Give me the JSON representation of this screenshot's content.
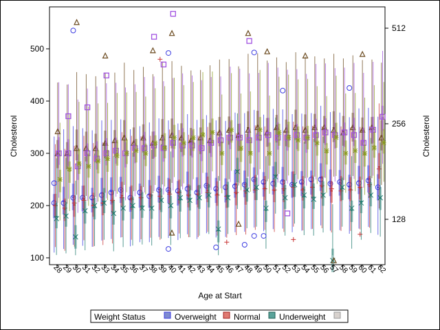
{
  "chart_data": {
    "type": "box",
    "title": "",
    "xlabel": "Age at Start",
    "ylabel": "Cholesterol",
    "y2label": "Cholesterol",
    "ylim": [
      80,
      580
    ],
    "yticks": [
      100,
      200,
      300,
      400,
      500
    ],
    "y2scale": "log2",
    "y2ticks": [
      128,
      256,
      512
    ],
    "categories": [
      "28",
      "29",
      "30",
      "31",
      "32",
      "33",
      "34",
      "35",
      "36",
      "37",
      "38",
      "39",
      "40",
      "41",
      "42",
      "43",
      "44",
      "45",
      "46",
      "47",
      "48",
      "49",
      "50",
      "51",
      "52",
      "53",
      "54",
      "55",
      "56",
      "57",
      "58",
      "59",
      "60",
      "61",
      "62"
    ],
    "legend": {
      "title": "Weight Status",
      "position": "bottom",
      "entries": [
        "Overweight",
        "Normal",
        "Underweight",
        ""
      ]
    },
    "series": [
      {
        "name": "Overweight",
        "color": "#3a3ae0",
        "marker": "circle",
        "iqr": 50,
        "whisker": 110,
        "mean": [
          205,
          205,
          215,
          215,
          215,
          220,
          225,
          230,
          215,
          225,
          218,
          230,
          230,
          228,
          232,
          225,
          238,
          232,
          235,
          237,
          240,
          250,
          245,
          242,
          245,
          240,
          245,
          250,
          250,
          242,
          245,
          240,
          243,
          248,
          235
        ]
      },
      {
        "name": "Normal",
        "color": "#c83232",
        "marker": "plus",
        "iqr": 45,
        "whisker": 95,
        "mean": [
          200,
          195,
          205,
          210,
          200,
          205,
          210,
          215,
          212,
          215,
          220,
          218,
          222,
          225,
          220,
          222,
          225,
          220,
          218,
          225,
          228,
          230,
          232,
          230,
          232,
          235,
          230,
          235,
          238,
          232,
          228,
          230,
          235,
          240,
          270
        ]
      },
      {
        "name": "Underweight",
        "color": "#1f7a6e",
        "marker": "x",
        "iqr": 45,
        "whisker": 85,
        "mean": [
          175,
          180,
          140,
          190,
          200,
          205,
          185,
          195,
          200,
          195,
          195,
          210,
          200,
          215,
          210,
          215,
          220,
          155,
          215,
          265,
          230,
          235,
          195,
          255,
          215,
          240,
          220,
          212,
          220,
          95,
          235,
          195,
          205,
          220,
          215
        ]
      },
      {
        "name": "",
        "color": "#6b4a1f",
        "marker": "triangle",
        "iqr": 55,
        "whisker": 110,
        "mean": [
          300,
          300,
          310,
          310,
          310,
          320,
          325,
          330,
          320,
          330,
          320,
          330,
          335,
          330,
          325,
          330,
          325,
          340,
          345,
          335,
          345,
          350,
          340,
          350,
          345,
          350,
          345,
          350,
          350,
          345,
          340,
          350,
          345,
          350,
          330
        ]
      },
      {
        "name": "",
        "color": "#a050e0",
        "marker": "square",
        "iqr": 50,
        "whisker": 105,
        "mean": [
          300,
          300,
          275,
          300,
          290,
          300,
          305,
          300,
          310,
          310,
          315,
          310,
          320,
          315,
          315,
          310,
          320,
          325,
          330,
          330,
          325,
          330,
          335,
          330,
          330,
          335,
          330,
          335,
          340,
          335,
          340,
          335,
          320,
          345,
          370
        ]
      },
      {
        "name": "",
        "color": "#8a9a20",
        "marker": "asterisk",
        "iqr": 45,
        "whisker": 90,
        "mean": [
          250,
          270,
          280,
          275,
          285,
          290,
          295,
          300,
          305,
          300,
          320,
          310,
          330,
          320,
          330,
          335,
          340,
          300,
          345,
          310,
          300,
          345,
          300,
          340,
          330,
          325,
          330,
          320,
          305,
          330,
          300,
          305,
          300,
          310,
          320
        ]
      }
    ],
    "outliers": [
      {
        "series": 0,
        "x": "28",
        "y": 243
      },
      {
        "series": 0,
        "x": "30",
        "y": 535
      },
      {
        "series": 0,
        "x": "40",
        "y": 117
      },
      {
        "series": 0,
        "x": "40",
        "y": 492
      },
      {
        "series": 0,
        "x": "45",
        "y": 120
      },
      {
        "series": 0,
        "x": "48",
        "y": 125
      },
      {
        "series": 0,
        "x": "49",
        "y": 493
      },
      {
        "series": 0,
        "x": "49",
        "y": 142
      },
      {
        "series": 0,
        "x": "50",
        "y": 142
      },
      {
        "series": 0,
        "x": "59",
        "y": 425
      },
      {
        "series": 0,
        "x": "52",
        "y": 420
      },
      {
        "series": 1,
        "x": "39",
        "y": 480
      },
      {
        "series": 1,
        "x": "46",
        "y": 130
      },
      {
        "series": 1,
        "x": "53",
        "y": 135
      },
      {
        "series": 1,
        "x": "60",
        "y": 145
      },
      {
        "series": 3,
        "x": "28",
        "y": 342
      },
      {
        "series": 3,
        "x": "30",
        "y": 551
      },
      {
        "series": 3,
        "x": "33",
        "y": 487
      },
      {
        "series": 3,
        "x": "38",
        "y": 497
      },
      {
        "series": 3,
        "x": "40",
        "y": 530
      },
      {
        "series": 3,
        "x": "48",
        "y": 530
      },
      {
        "series": 3,
        "x": "50",
        "y": 495
      },
      {
        "series": 3,
        "x": "54",
        "y": 487
      },
      {
        "series": 3,
        "x": "60",
        "y": 490
      },
      {
        "series": 3,
        "x": "40",
        "y": 148
      },
      {
        "series": 3,
        "x": "47",
        "y": 165
      },
      {
        "series": 3,
        "x": "57",
        "y": 95
      },
      {
        "series": 4,
        "x": "29",
        "y": 371
      },
      {
        "series": 4,
        "x": "31",
        "y": 388
      },
      {
        "series": 4,
        "x": "38",
        "y": 523
      },
      {
        "series": 4,
        "x": "40",
        "y": 567
      },
      {
        "series": 4,
        "x": "39",
        "y": 470
      },
      {
        "series": 4,
        "x": "33",
        "y": 449
      },
      {
        "series": 4,
        "x": "48",
        "y": 515
      },
      {
        "series": 4,
        "x": "52",
        "y": 185
      }
    ]
  }
}
